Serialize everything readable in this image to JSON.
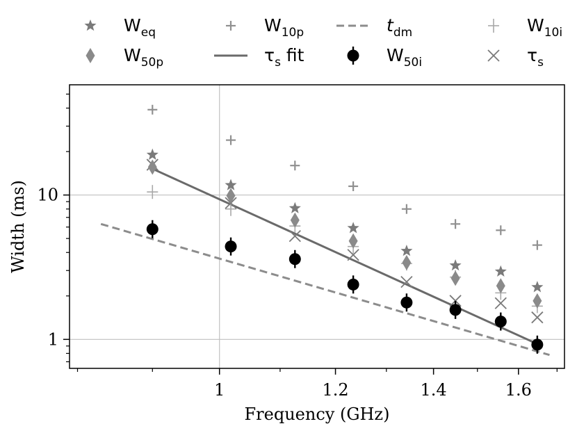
{
  "chart_data": {
    "type": "scatter",
    "xlabel": "Frequency (GHz)",
    "ylabel": "Width (ms)",
    "xscale": "log",
    "yscale": "log",
    "xlim": [
      0.79,
      1.72
    ],
    "ylim": [
      0.63,
      58
    ],
    "xticks": [
      {
        "value": 1.0,
        "label": "1"
      },
      {
        "value": 1.2,
        "label": "1.2"
      },
      {
        "value": 1.4,
        "label": "1.4"
      },
      {
        "value": 1.6,
        "label": "1.6"
      }
    ],
    "yticks": [
      {
        "value": 1,
        "label": "1"
      },
      {
        "value": 10,
        "label": "10"
      }
    ],
    "grid": {
      "x": [
        1.0
      ],
      "y": [
        1,
        10
      ]
    },
    "legend_placement": "top-outside",
    "series": [
      {
        "name": "Weq",
        "main": "W",
        "sub": "eq",
        "marker": "star",
        "color": "#7a7a7a",
        "x": [
          0.9,
          1.018,
          1.126,
          1.234,
          1.342,
          1.449,
          1.556,
          1.648
        ],
        "y": [
          19,
          11.7,
          8.1,
          5.9,
          4.1,
          3.25,
          2.95,
          2.3
        ]
      },
      {
        "name": "W50p",
        "main": "W",
        "sub": "50p",
        "marker": "diamond",
        "color": "#8a8a8a",
        "x": [
          0.9,
          1.018,
          1.126,
          1.234,
          1.342,
          1.449,
          1.556,
          1.648
        ],
        "y": [
          15.6,
          9.9,
          6.7,
          4.8,
          3.4,
          2.65,
          2.35,
          1.85
        ]
      },
      {
        "name": "W10p",
        "main": "W",
        "sub": "10p",
        "marker": "plus",
        "color": "#909090",
        "x": [
          0.9,
          1.018,
          1.126,
          1.234,
          1.342,
          1.449,
          1.556,
          1.648
        ],
        "y": [
          39,
          24,
          16,
          11.5,
          8,
          6.3,
          5.7,
          4.5
        ]
      },
      {
        "name": "τs fit",
        "main": "τ",
        "sub": "s",
        "suffix": " fit",
        "marker": "line",
        "color": "#6a6a6a",
        "x": [
          0.9,
          1.648
        ],
        "y": [
          15.2,
          0.93
        ]
      },
      {
        "name": "tdm",
        "main": "t",
        "sub": "dm",
        "marker": "dashed",
        "color": "#8c8c8c",
        "x": [
          0.83,
          1.68
        ],
        "y": [
          6.3,
          0.78
        ]
      },
      {
        "name": "W50i",
        "main": "W",
        "sub": "50i",
        "marker": "circle",
        "color": "#000000",
        "x": [
          0.9,
          1.018,
          1.126,
          1.234,
          1.342,
          1.449,
          1.556,
          1.648
        ],
        "y": [
          5.8,
          4.4,
          3.6,
          2.4,
          1.8,
          1.6,
          1.33,
          0.92
        ]
      },
      {
        "name": "W10i",
        "main": "W",
        "sub": "10i",
        "marker": "thin-plus",
        "color": "#a8a8a8",
        "x": [
          0.9,
          1.018,
          1.126,
          1.234,
          1.342,
          1.449,
          1.556,
          1.648
        ],
        "y": [
          10.5,
          8,
          6.1,
          4.4,
          3.35,
          2.7,
          2.1,
          1.7
        ]
      },
      {
        "name": "τs",
        "main": "τ",
        "sub": "s",
        "marker": "x-star",
        "color": "#7a7a7a",
        "x": [
          0.9,
          1.018,
          1.126,
          1.234,
          1.342,
          1.449,
          1.556,
          1.648
        ],
        "y": [
          16.2,
          8.8,
          5.2,
          3.85,
          2.5,
          1.85,
          1.78,
          1.42
        ]
      }
    ]
  }
}
